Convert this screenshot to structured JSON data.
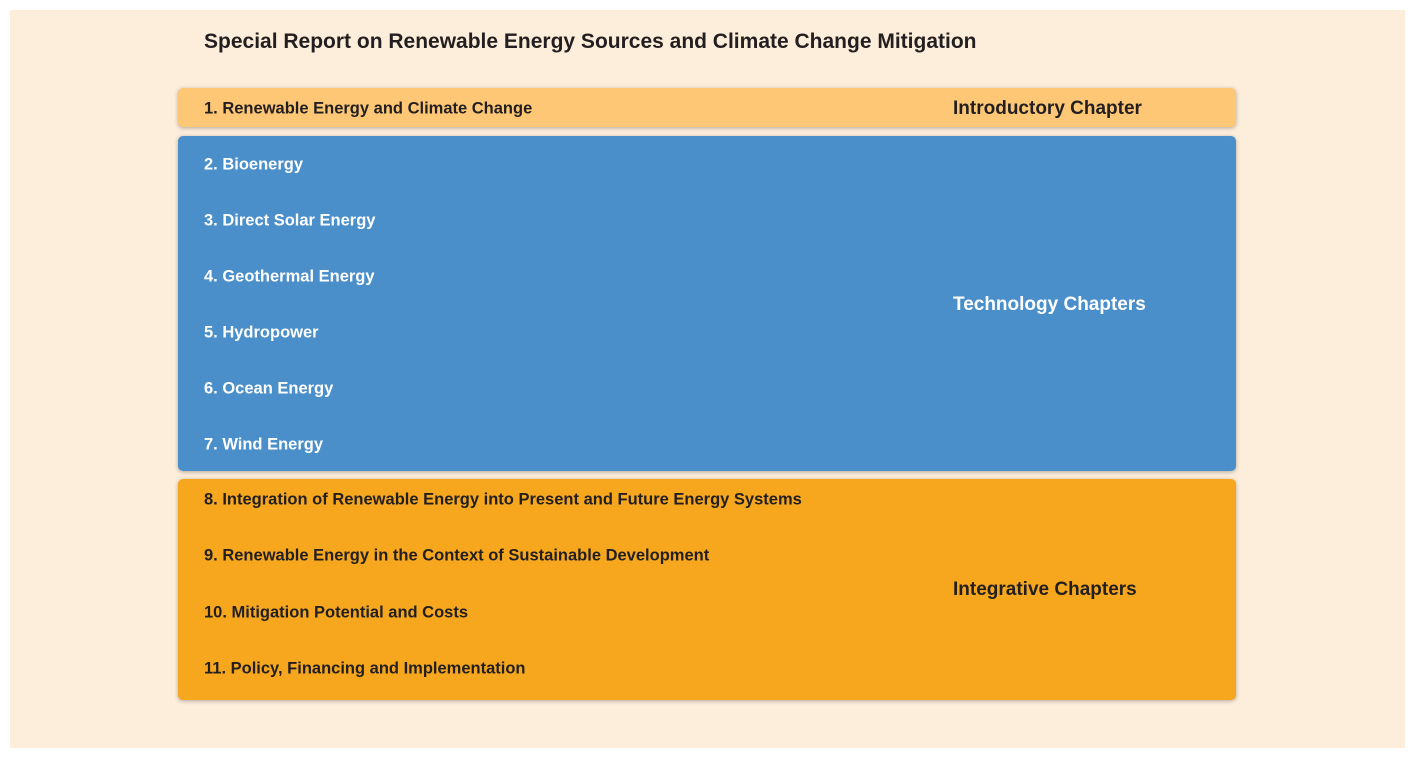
{
  "title": "Special Report on Renewable Energy Sources and Climate Change Mitigation",
  "groups": [
    {
      "label": "Introductory Chapter",
      "chapters": [
        "1. Renewable Energy and Climate Change"
      ]
    },
    {
      "label": "Technology Chapters",
      "chapters": [
        "2. Bioenergy",
        "3. Direct Solar Energy",
        "4. Geothermal Energy",
        "5. Hydropower",
        "6. Ocean Energy",
        "7. Wind Energy"
      ]
    },
    {
      "label": "Integrative Chapters",
      "chapters": [
        "8. Integration of Renewable Energy into Present and Future Energy Systems",
        "9. Renewable Energy in the Context of Sustainable Development",
        "10. Mitigation Potential and Costs",
        "11. Policy, Financing and Implementation"
      ]
    }
  ]
}
